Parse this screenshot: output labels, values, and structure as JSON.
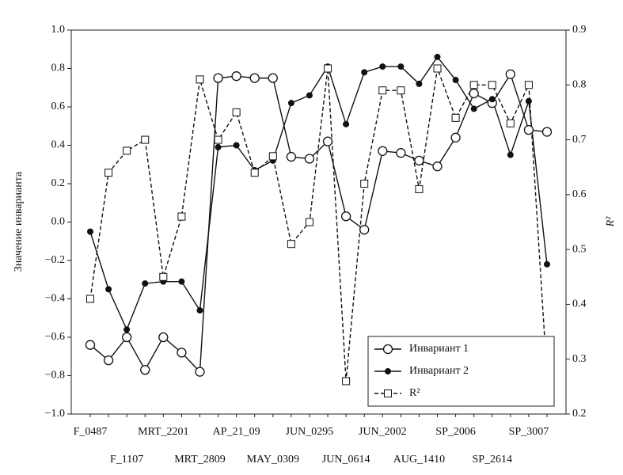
{
  "chart_data": {
    "type": "line",
    "ylabel": "Значение инварианта",
    "y2label": "R²",
    "categories": [
      "F_0487",
      null,
      "F_1107",
      null,
      "MRT_2201",
      null,
      "MRT_2809",
      null,
      "AP_21_09",
      null,
      "MAY_0309",
      null,
      "JUN_0295",
      null,
      "JUN_0614",
      null,
      "JUN_2002",
      null,
      "AUG_1410",
      null,
      "SP_2006",
      null,
      "SP_2614",
      null,
      "SP_3007",
      null
    ],
    "series": [
      {
        "name": "Инвариант 1",
        "color": "#111111",
        "marker": "open-circle",
        "dash": "solid",
        "values": [
          -0.64,
          -0.72,
          -0.6,
          -0.77,
          -0.6,
          -0.68,
          -0.78,
          0.75,
          0.76,
          0.75,
          0.75,
          0.34,
          0.33,
          0.42,
          0.03,
          -0.04,
          0.37,
          0.36,
          0.32,
          0.29,
          0.44,
          0.67,
          0.62,
          0.77,
          0.48,
          0.47
        ]
      },
      {
        "name": "Инвариант 2",
        "color": "#111111",
        "marker": "filled-circle",
        "dash": "solid",
        "values": [
          -0.05,
          -0.35,
          -0.56,
          -0.32,
          -0.31,
          -0.31,
          -0.46,
          0.39,
          0.4,
          0.27,
          0.32,
          0.62,
          0.66,
          0.81,
          0.51,
          0.78,
          0.81,
          0.81,
          0.72,
          0.86,
          0.74,
          0.59,
          0.64,
          0.35,
          0.63,
          -0.22
        ]
      },
      {
        "name": "R²",
        "color": "#111111",
        "marker": "open-square",
        "dash": "dashed",
        "axis": "y2",
        "values": [
          0.41,
          0.64,
          0.68,
          0.7,
          0.45,
          0.56,
          0.81,
          0.7,
          0.75,
          0.64,
          0.67,
          0.51,
          0.55,
          0.83,
          0.26,
          0.62,
          0.79,
          0.79,
          0.61,
          0.83,
          0.74,
          0.8,
          0.8,
          0.73,
          0.8,
          0.27
        ]
      }
    ],
    "ylim": [
      -1.0,
      1.0
    ],
    "yticks": [
      {
        "value": -1.0,
        "label": "−1.0"
      },
      {
        "value": -0.8,
        "label": "−0.8"
      },
      {
        "value": -0.6,
        "label": "−0.6"
      },
      {
        "value": -0.4,
        "label": "−0.4"
      },
      {
        "value": -0.2,
        "label": "−0.2"
      },
      {
        "value": 0,
        "label": "0.0"
      },
      {
        "value": 0.2,
        "label": "0.2"
      },
      {
        "value": 0.4,
        "label": "0.4"
      },
      {
        "value": 0.6,
        "label": "0.6"
      },
      {
        "value": 0.8,
        "label": "0.8"
      },
      {
        "value": 1.0,
        "label": "1.0"
      }
    ],
    "y2lim": [
      0.2,
      0.9
    ],
    "y2ticks": [
      0.2,
      0.3,
      0.4,
      0.5,
      0.6,
      0.7,
      0.8,
      0.9
    ],
    "grid": false,
    "legend": "lower-right"
  }
}
